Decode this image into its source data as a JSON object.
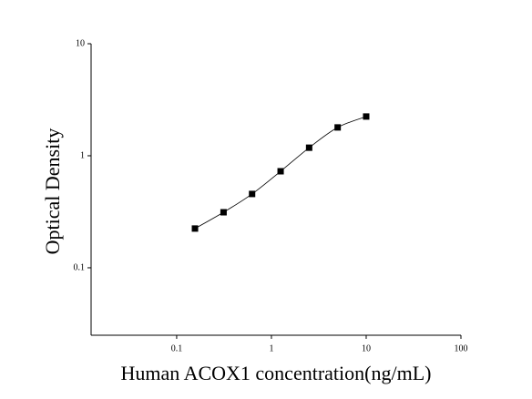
{
  "chart_data": {
    "type": "scatter",
    "xlabel": "Human ACOX1 concentration(ng/mL)",
    "ylabel": "Optical Density",
    "x": [
      0.156,
      0.3125,
      0.625,
      1.25,
      2.5,
      5,
      10
    ],
    "values": [
      0.224,
      0.313,
      0.456,
      0.727,
      1.18,
      1.79,
      2.24
    ],
    "color": "#000000",
    "fit_line": true,
    "xscale": "log",
    "yscale": "log",
    "xlim": [
      0.0125,
      100
    ],
    "ylim": [
      0.025,
      10
    ],
    "xticks": [
      0.1,
      1,
      10,
      100
    ],
    "yticks": [
      0.1,
      1,
      10
    ]
  }
}
